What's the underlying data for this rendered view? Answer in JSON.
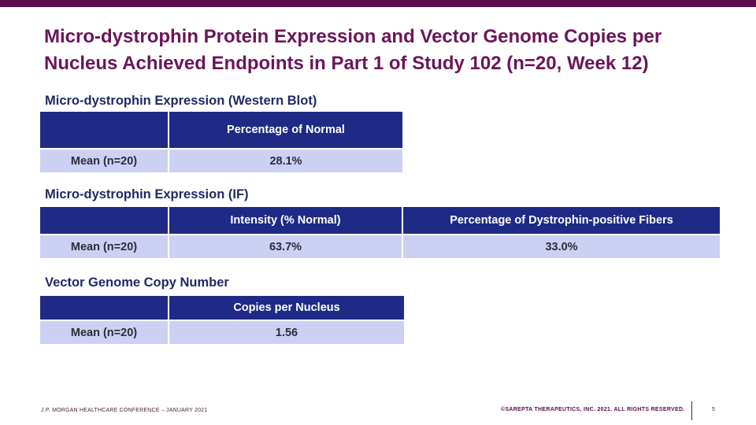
{
  "slide": {
    "title": "Micro-dystrophin Protein Expression and Vector Genome Copies per Nucleus Achieved Endpoints in Part 1 of Study 102 (n=20, Week 12)"
  },
  "sections": [
    {
      "heading": "Micro-dystrophin Expression (Western Blot)",
      "columns": [
        "",
        "Percentage of Normal"
      ],
      "rows": [
        [
          "Mean (n=20)",
          "28.1%"
        ]
      ]
    },
    {
      "heading": "Micro-dystrophin Expression (IF)",
      "columns": [
        "",
        "Intensity (% Normal)",
        "Percentage of Dystrophin-positive Fibers"
      ],
      "rows": [
        [
          "Mean (n=20)",
          "63.7%",
          "33.0%"
        ]
      ]
    },
    {
      "heading": "Vector Genome Copy Number",
      "columns": [
        "",
        "Copies per Nucleus"
      ],
      "rows": [
        [
          "Mean (n=20)",
          "1.56"
        ]
      ]
    }
  ],
  "footer": {
    "conference": "J.P. MORGAN HEALTHCARE CONFERENCE – JANUARY 2021",
    "copyright": "©SAREPTA THERAPEUTICS, INC. 2021.  ALL RIGHTS RESERVED.",
    "page_number": "5"
  },
  "colors": {
    "top_bar": "#5b0a4c",
    "title": "#6b1558",
    "header_fill": "#1f2a86",
    "row_fill": "#ccd1f3"
  }
}
